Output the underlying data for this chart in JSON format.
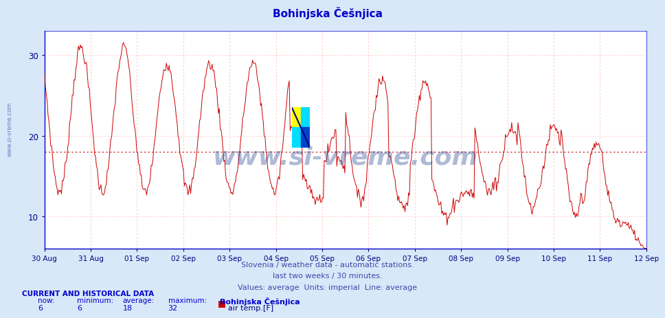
{
  "title": "Bohinjska Češnjica",
  "title_color": "#0000cc",
  "bg_color": "#d8e8f8",
  "plot_bg_color": "#ffffff",
  "line_color": "#cc0000",
  "average_line_value": 18,
  "average_line_color": "#cc0000",
  "ylim_min": 6,
  "ylim_max": 33,
  "yticks": [
    10,
    20,
    30
  ],
  "tick_color": "#000080",
  "grid_h_color": "#ffbbbb",
  "grid_v_color": "#ffbbbb",
  "spine_color": "#0000cc",
  "x_tick_labels": [
    "30 Aug",
    "31 Aug",
    "01 Sep",
    "02 Sep",
    "03 Sep",
    "04 Sep",
    "05 Sep",
    "06 Sep",
    "07 Sep",
    "08 Sep",
    "09 Sep",
    "10 Sep",
    "11 Sep",
    "12 Sep"
  ],
  "footer_line1": "Slovenia / weather data - automatic stations.",
  "footer_line2": "last two weeks / 30 minutes.",
  "footer_line3": "Values: average  Units: imperial  Line: average",
  "footer_color": "#4444aa",
  "watermark": "www.si-vreme.com",
  "watermark_color": "#1a3a8a",
  "watermark_alpha": 0.35,
  "side_text": "www.si-vreme.com",
  "current_label": "CURRENT AND HISTORICAL DATA",
  "now_val": "6",
  "min_val": "6",
  "avg_val": "18",
  "max_val": "32",
  "station_name": "Bohinjska Češnjica",
  "legend_label": "air temp.[F]",
  "legend_color": "#cc0000",
  "n_points": 672,
  "logo_yellow": "#ffff00",
  "logo_cyan": "#00ddff",
  "logo_blue": "#0044cc",
  "logo_navy": "#0000cc"
}
